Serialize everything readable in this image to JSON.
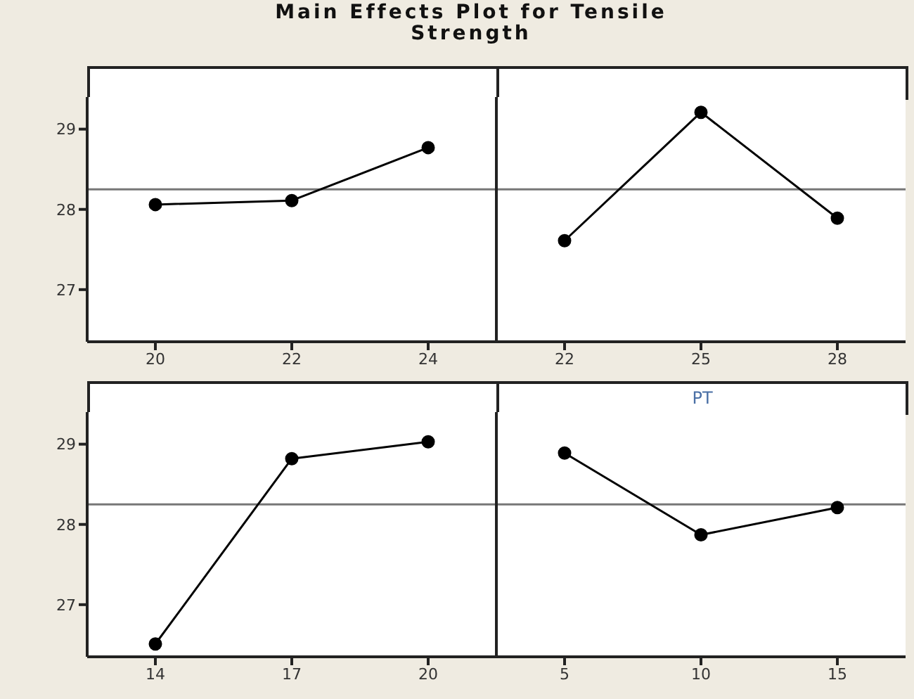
{
  "chart_data": [
    {
      "type": "line",
      "title": "Main Effects Plot for Tensile Strength",
      "x": [
        20,
        22,
        24
      ],
      "series": [
        {
          "color": "#000000",
          "values": [
            28.06,
            28.11,
            28.77
          ]
        }
      ],
      "xlim": [
        19,
        25
      ],
      "xticks": [
        20,
        22,
        24
      ],
      "ylim": [
        26.35,
        29.4
      ],
      "yticks": [
        27,
        28,
        29
      ],
      "ref_lines": [
        {
          "axis": "y",
          "value": 28.25,
          "color": "#777777"
        }
      ],
      "marker": "circle",
      "line_style": "solid"
    },
    {
      "type": "line",
      "x": [
        22,
        25,
        28
      ],
      "series": [
        {
          "color": "#000000",
          "values": [
            27.61,
            29.21,
            27.89
          ]
        }
      ],
      "xlim": [
        20.5,
        29.5
      ],
      "xticks": [
        22,
        25,
        28
      ],
      "ylim": [
        26.35,
        29.4
      ],
      "yticks": [
        27,
        28,
        29
      ],
      "tick_labels": "x",
      "ref_lines": [
        {
          "axis": "y",
          "value": 28.25,
          "color": "#777777"
        }
      ],
      "marker": "circle",
      "line_style": "solid"
    },
    {
      "type": "line",
      "x": [
        14,
        17,
        20
      ],
      "series": [
        {
          "color": "#000000",
          "values": [
            26.51,
            28.82,
            29.03
          ]
        }
      ],
      "xlim": [
        12.5,
        21.5
      ],
      "xticks": [
        14,
        17,
        20
      ],
      "ylim": [
        26.35,
        29.4
      ],
      "yticks": [
        27,
        28,
        29
      ],
      "ref_lines": [
        {
          "axis": "y",
          "value": 28.25,
          "color": "#777777"
        }
      ],
      "marker": "circle",
      "line_style": "solid"
    },
    {
      "type": "line",
      "title": "PT",
      "x": [
        5,
        10,
        15
      ],
      "series": [
        {
          "color": "#000000",
          "values": [
            28.89,
            27.87,
            28.21
          ]
        }
      ],
      "xlim": [
        2.5,
        17.5
      ],
      "xticks": [
        5,
        10,
        15
      ],
      "ylim": [
        26.35,
        29.4
      ],
      "yticks": [
        27,
        28,
        29
      ],
      "tick_labels": "x",
      "ref_lines": [
        {
          "axis": "y",
          "value": 28.25,
          "color": "#777777"
        }
      ],
      "marker": "circle",
      "line_style": "solid"
    }
  ]
}
